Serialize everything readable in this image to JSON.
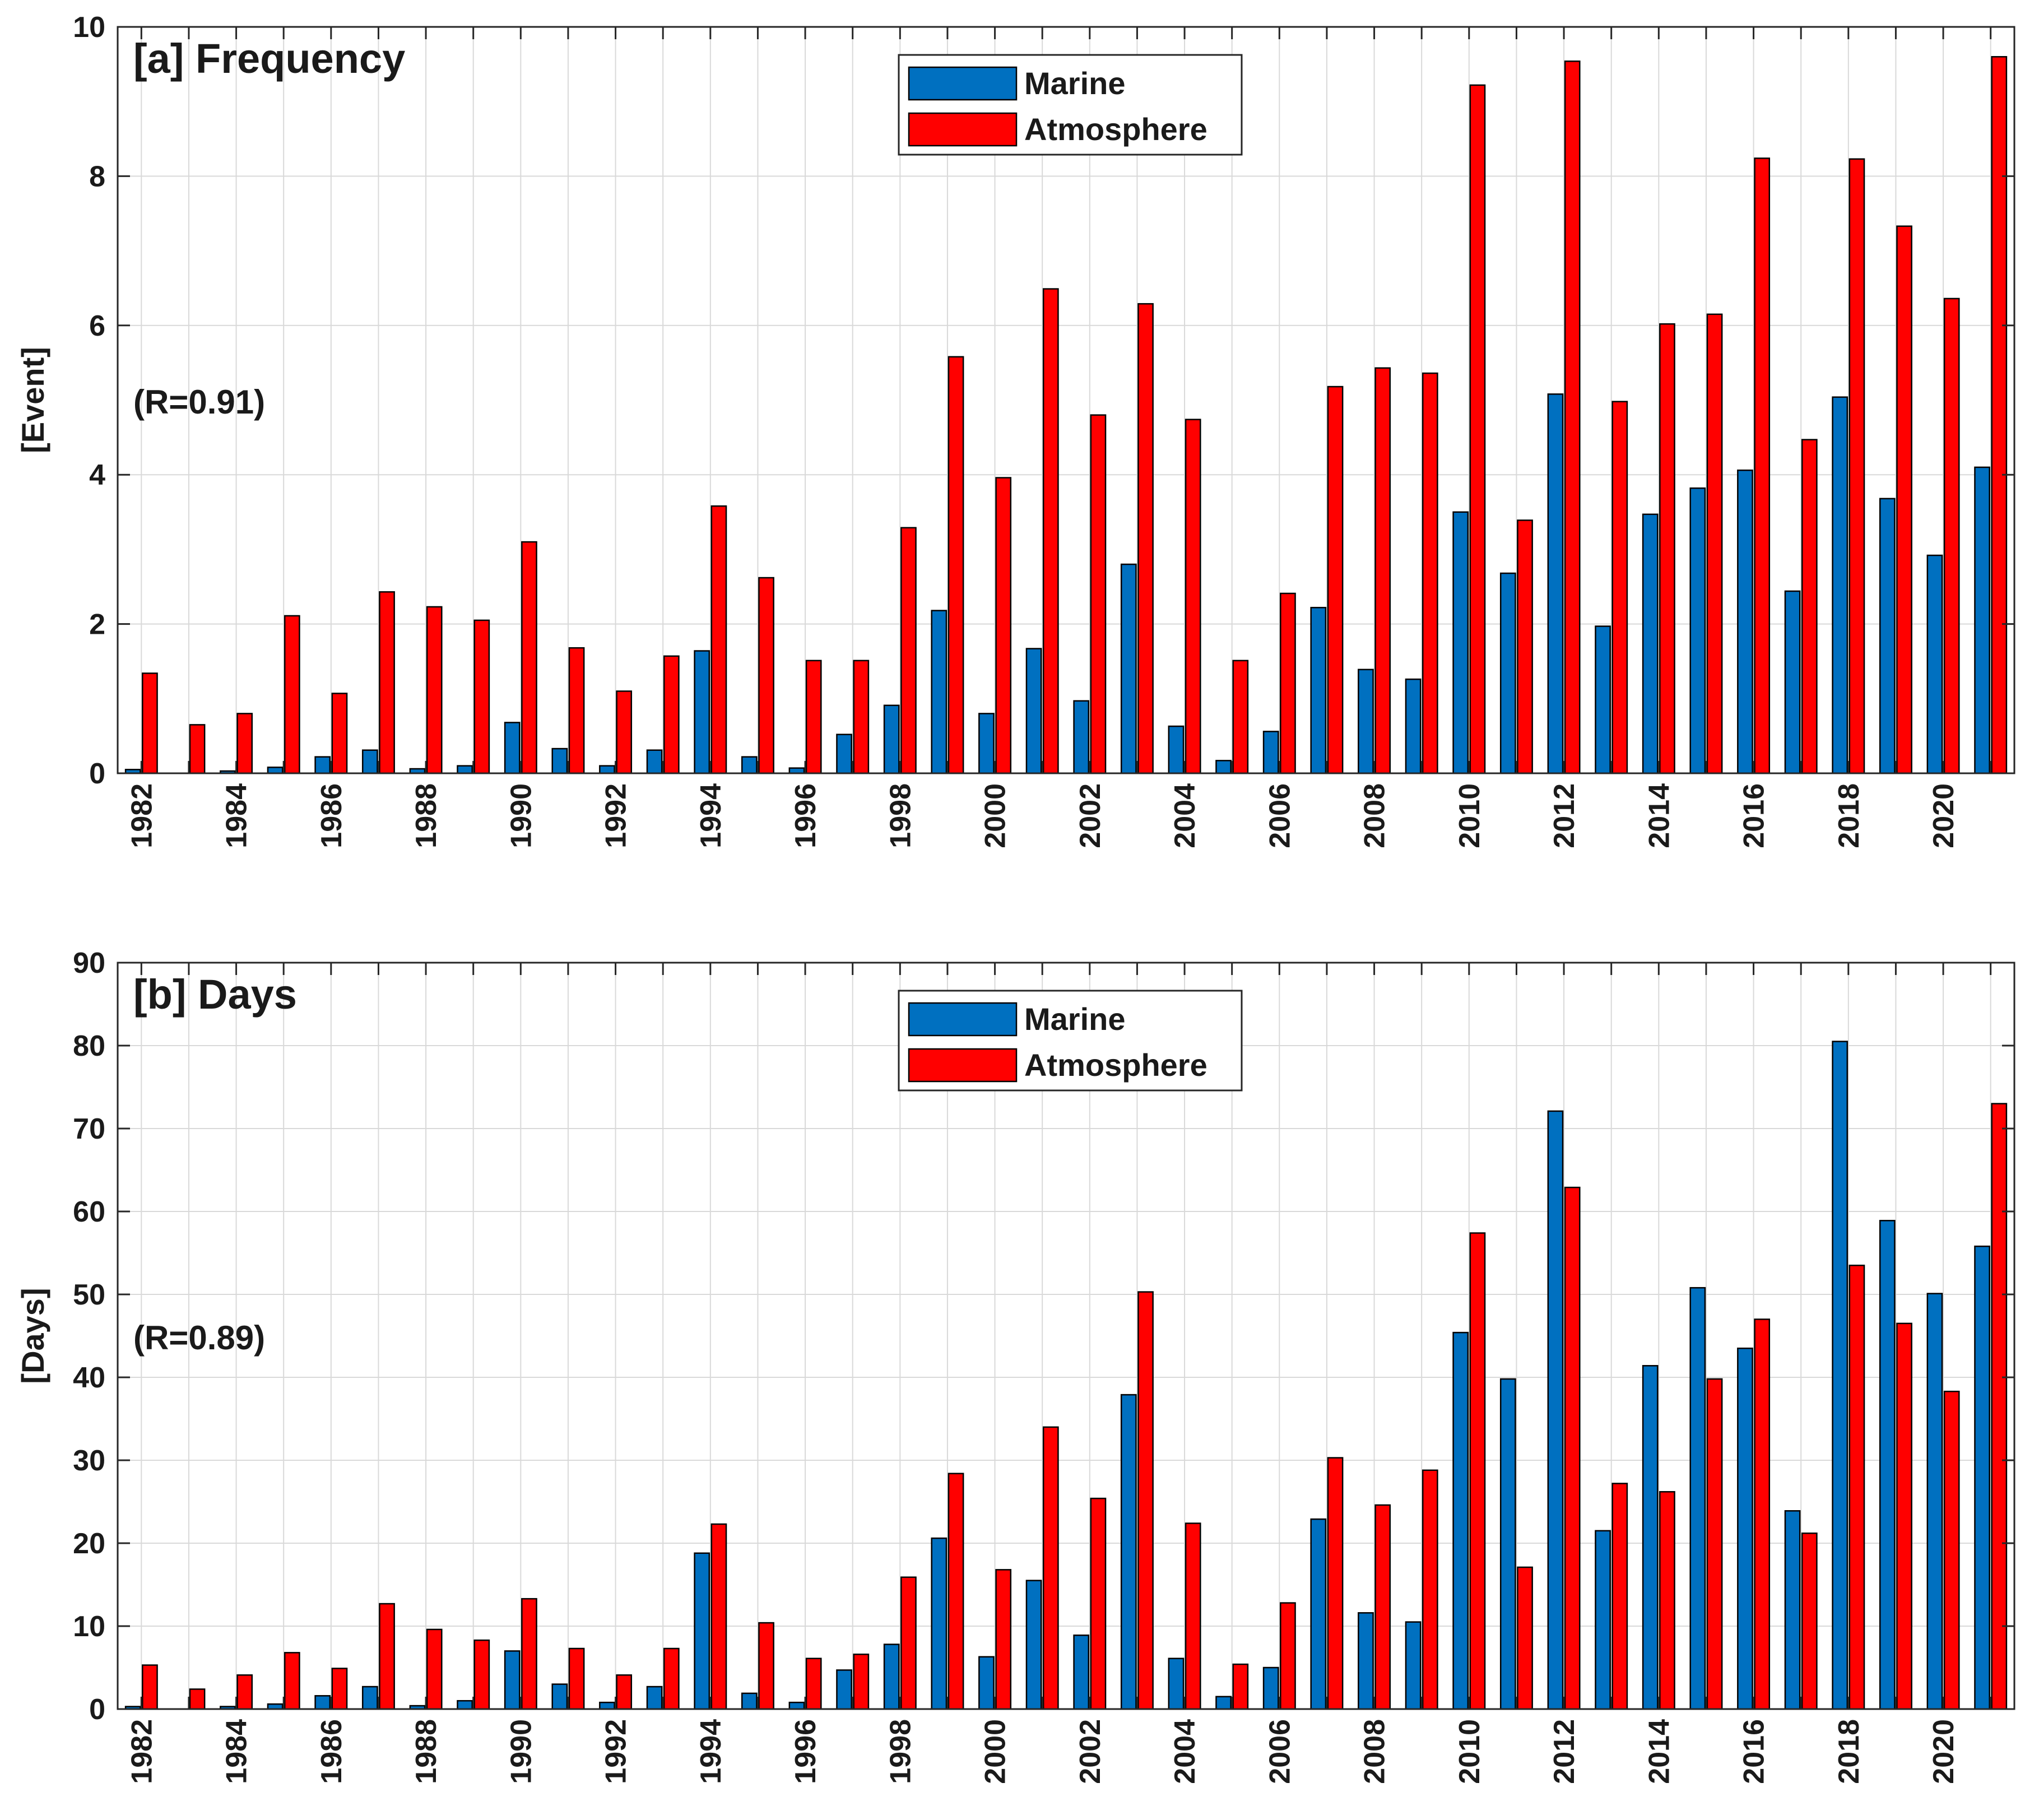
{
  "colors": {
    "marine": "#0070C0",
    "atmosphere": "#FF0000",
    "grid": "#d9d9d9",
    "axis": "#262626"
  },
  "chart_data": [
    {
      "type": "bar",
      "panel_title": "[a] Frequency",
      "ylabel": "[Event]",
      "annotation": "(R=0.91)",
      "ylim": [
        0,
        10
      ],
      "yticks": [
        0,
        2,
        4,
        6,
        8,
        10
      ],
      "xtick_labels": [
        "1982",
        "1984",
        "1986",
        "1988",
        "1990",
        "1992",
        "1994",
        "1996",
        "1998",
        "2000",
        "2002",
        "2004",
        "2006",
        "2008",
        "2010",
        "2012",
        "2014",
        "2016",
        "2018",
        "2020"
      ],
      "legend": [
        "Marine",
        "Atmosphere"
      ],
      "legend_location": "top-center",
      "grid": true,
      "categories": [
        "1982",
        "1983",
        "1984",
        "1985",
        "1986",
        "1987",
        "1988",
        "1989",
        "1990",
        "1991",
        "1992",
        "1993",
        "1994",
        "1995",
        "1996",
        "1997",
        "1998",
        "1999",
        "2000",
        "2001",
        "2002",
        "2003",
        "2004",
        "2005",
        "2006",
        "2007",
        "2008",
        "2009",
        "2010",
        "2011",
        "2012",
        "2013",
        "2014",
        "2015",
        "2016",
        "2017",
        "2018",
        "2019",
        "2020",
        "2021"
      ],
      "series": [
        {
          "name": "Marine",
          "values": [
            0.05,
            0,
            0.03,
            0.08,
            0.22,
            0.31,
            0.06,
            0.1,
            0.68,
            0.33,
            0.1,
            0.31,
            1.64,
            0.22,
            0.07,
            0.52,
            0.91,
            2.18,
            0.8,
            1.67,
            0.97,
            2.8,
            0.63,
            0.17,
            0.56,
            2.22,
            1.39,
            1.26,
            3.5,
            2.68,
            5.08,
            1.97,
            3.47,
            3.82,
            4.06,
            2.44,
            5.04,
            3.68,
            2.92,
            4.1
          ]
        },
        {
          "name": "Atmosphere",
          "values": [
            1.34,
            0.65,
            0.8,
            2.11,
            1.07,
            2.43,
            2.23,
            2.05,
            3.1,
            1.68,
            1.1,
            1.57,
            3.58,
            2.62,
            1.51,
            1.51,
            3.29,
            5.58,
            3.96,
            6.49,
            4.8,
            6.29,
            4.74,
            1.51,
            2.41,
            5.18,
            5.43,
            5.36,
            9.22,
            3.39,
            9.54,
            4.98,
            6.02,
            6.15,
            8.24,
            4.47,
            8.23,
            7.33,
            6.36,
            9.6
          ]
        }
      ]
    },
    {
      "type": "bar",
      "panel_title": "[b] Days",
      "ylabel": "[Days]",
      "annotation": "(R=0.89)",
      "ylim": [
        0,
        90
      ],
      "yticks": [
        0,
        10,
        20,
        30,
        40,
        50,
        60,
        70,
        80,
        90
      ],
      "xtick_labels": [
        "1982",
        "1984",
        "1986",
        "1988",
        "1990",
        "1992",
        "1994",
        "1996",
        "1998",
        "2000",
        "2002",
        "2004",
        "2006",
        "2008",
        "2010",
        "2012",
        "2014",
        "2016",
        "2018",
        "2020"
      ],
      "legend": [
        "Marine",
        "Atmosphere"
      ],
      "legend_location": "top-center",
      "grid": true,
      "categories": [
        "1982",
        "1983",
        "1984",
        "1985",
        "1986",
        "1987",
        "1988",
        "1989",
        "1990",
        "1991",
        "1992",
        "1993",
        "1994",
        "1995",
        "1996",
        "1997",
        "1998",
        "1999",
        "2000",
        "2001",
        "2002",
        "2003",
        "2004",
        "2005",
        "2006",
        "2007",
        "2008",
        "2009",
        "2010",
        "2011",
        "2012",
        "2013",
        "2014",
        "2015",
        "2016",
        "2017",
        "2018",
        "2019",
        "2020",
        "2021"
      ],
      "series": [
        {
          "name": "Marine",
          "values": [
            0.3,
            0,
            0.3,
            0.6,
            1.6,
            2.7,
            0.4,
            1,
            7,
            3,
            0.8,
            2.7,
            18.8,
            1.9,
            0.8,
            4.7,
            7.8,
            20.6,
            6.3,
            15.5,
            8.9,
            37.9,
            6.1,
            1.5,
            5,
            22.9,
            11.6,
            10.5,
            45.4,
            39.8,
            72.1,
            21.5,
            41.4,
            50.8,
            43.5,
            23.9,
            80.5,
            58.9,
            50.1,
            55.8
          ]
        },
        {
          "name": "Atmosphere",
          "values": [
            5.3,
            2.4,
            4.1,
            6.8,
            4.9,
            12.7,
            9.6,
            8.3,
            13.3,
            7.3,
            4.1,
            7.3,
            22.3,
            10.4,
            6.1,
            6.6,
            15.9,
            28.4,
            16.8,
            34,
            25.4,
            50.3,
            22.4,
            5.4,
            12.8,
            30.3,
            24.6,
            28.8,
            57.4,
            17.1,
            62.9,
            27.2,
            26.2,
            39.8,
            47,
            21.2,
            53.5,
            46.5,
            38.3,
            73
          ]
        }
      ]
    }
  ]
}
